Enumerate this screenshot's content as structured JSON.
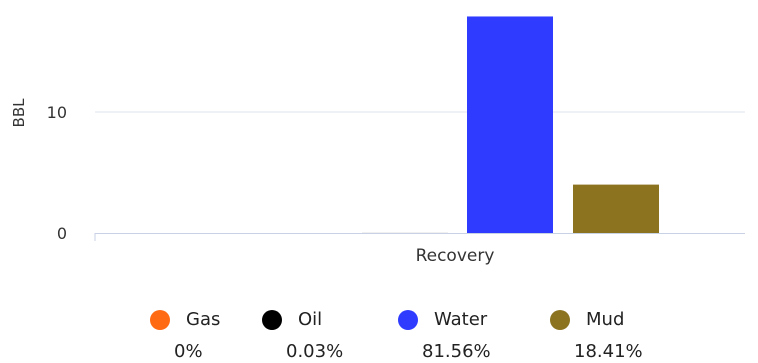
{
  "chart_data": {
    "type": "bar",
    "categories": [
      "Recovery"
    ],
    "series": [
      {
        "name": "Gas",
        "values": [
          0
        ],
        "color": "#ff6a13",
        "percent": "0%"
      },
      {
        "name": "Oil",
        "values": [
          0.005
        ],
        "color": "#000000",
        "percent": "0.03%"
      },
      {
        "name": "Water",
        "values": [
          17.9
        ],
        "color": "#2f3cff",
        "percent": "81.56%"
      },
      {
        "name": "Mud",
        "values": [
          4.0
        ],
        "color": "#8b7320",
        "percent": "18.41%"
      }
    ],
    "title": "",
    "xlabel": "",
    "ylabel": "BBL",
    "ylim": [
      0,
      18.6
    ],
    "yticks": [
      0,
      10
    ],
    "grid": true,
    "legend_position": "bottom"
  }
}
